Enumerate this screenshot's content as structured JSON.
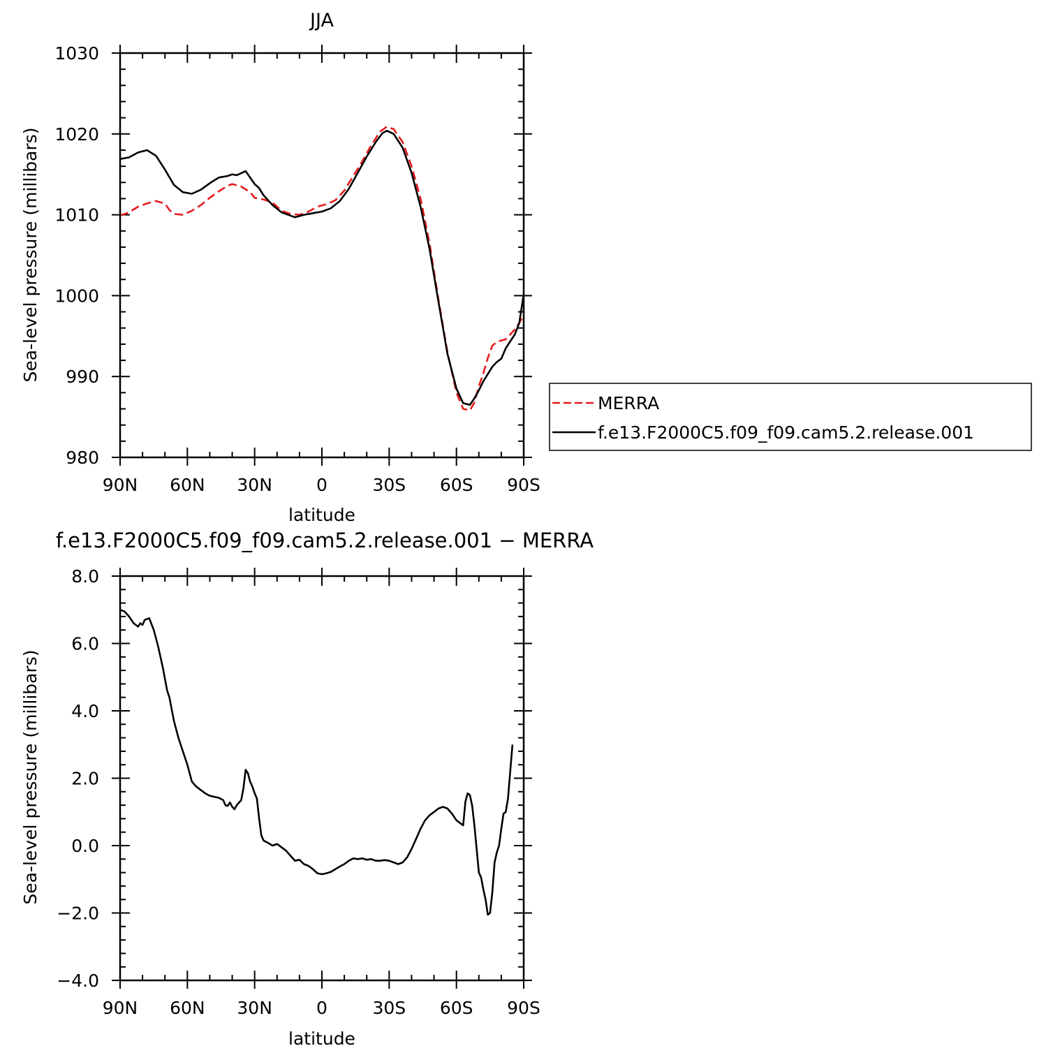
{
  "colors": {
    "merra": "#e41a1c",
    "model": "#000000",
    "axis": "#000000",
    "background": "#ffffff"
  },
  "chart_data": [
    {
      "type": "line",
      "title": "JJA",
      "xlabel": "latitude",
      "ylabel": "Sea-level pressure (millibars)",
      "xlim": [
        90,
        -90
      ],
      "ylim": [
        980,
        1030
      ],
      "x_tick_values": [
        90,
        60,
        30,
        0,
        -30,
        -60,
        -90
      ],
      "x_tick_labels": [
        "90N",
        "60N",
        "30N",
        "0",
        "30S",
        "60S",
        "90S"
      ],
      "y_tick_values": [
        980,
        990,
        1000,
        1010,
        1020,
        1030
      ],
      "y_tick_labels": [
        "980",
        "990",
        "1000",
        "1010",
        "1020",
        "1030"
      ],
      "legend": {
        "placement": "right-outside"
      },
      "series": [
        {
          "name": "MERRA",
          "style": "dashed",
          "color": "#e41a1c",
          "points": [
            [
              90,
              1009.9
            ],
            [
              86,
              1010.3
            ],
            [
              82,
              1011.0
            ],
            [
              78,
              1011.4
            ],
            [
              74,
              1011.7
            ],
            [
              70,
              1011.4
            ],
            [
              68,
              1010.6
            ],
            [
              66,
              1010.1
            ],
            [
              62,
              1010.0
            ],
            [
              58,
              1010.5
            ],
            [
              54,
              1011.2
            ],
            [
              50,
              1012.1
            ],
            [
              46,
              1012.9
            ],
            [
              42,
              1013.6
            ],
            [
              40,
              1013.8
            ],
            [
              36,
              1013.5
            ],
            [
              32,
              1012.8
            ],
            [
              30,
              1012.1
            ],
            [
              26,
              1011.9
            ],
            [
              22,
              1011.5
            ],
            [
              18,
              1010.5
            ],
            [
              14,
              1010.1
            ],
            [
              10,
              1010.0
            ],
            [
              6,
              1010.4
            ],
            [
              2,
              1011.0
            ],
            [
              -2,
              1011.3
            ],
            [
              -6,
              1011.8
            ],
            [
              -10,
              1013.0
            ],
            [
              -14,
              1014.8
            ],
            [
              -18,
              1016.6
            ],
            [
              -22,
              1018.6
            ],
            [
              -26,
              1020.3
            ],
            [
              -29,
              1020.9
            ],
            [
              -32,
              1020.6
            ],
            [
              -36,
              1019.0
            ],
            [
              -40,
              1016.0
            ],
            [
              -44,
              1012.0
            ],
            [
              -48,
              1006.5
            ],
            [
              -52,
              999.5
            ],
            [
              -56,
              993.0
            ],
            [
              -60,
              988.0
            ],
            [
              -63,
              986.0
            ],
            [
              -66,
              985.8
            ],
            [
              -68,
              986.8
            ],
            [
              -70,
              988.8
            ],
            [
              -72,
              990.4
            ],
            [
              -74,
              992.3
            ],
            [
              -76,
              993.8
            ],
            [
              -78,
              994.3
            ],
            [
              -82,
              994.6
            ],
            [
              -86,
              995.8
            ],
            [
              -90,
              997.5
            ]
          ]
        },
        {
          "name": "f.e13.F2000C5.f09_f09.cam5.2.release.001",
          "style": "solid",
          "color": "#000000",
          "points": [
            [
              90,
              1016.9
            ],
            [
              86,
              1017.1
            ],
            [
              82,
              1017.7
            ],
            [
              78,
              1018.0
            ],
            [
              74,
              1017.3
            ],
            [
              70,
              1015.6
            ],
            [
              66,
              1013.7
            ],
            [
              62,
              1012.8
            ],
            [
              58,
              1012.6
            ],
            [
              54,
              1013.1
            ],
            [
              50,
              1013.9
            ],
            [
              46,
              1014.6
            ],
            [
              42,
              1014.8
            ],
            [
              40,
              1015.0
            ],
            [
              38,
              1014.9
            ],
            [
              34,
              1015.4
            ],
            [
              32,
              1014.6
            ],
            [
              30,
              1013.8
            ],
            [
              28,
              1013.3
            ],
            [
              26,
              1012.4
            ],
            [
              22,
              1011.2
            ],
            [
              18,
              1010.3
            ],
            [
              14,
              1009.9
            ],
            [
              12,
              1009.7
            ],
            [
              8,
              1010.0
            ],
            [
              4,
              1010.2
            ],
            [
              0,
              1010.4
            ],
            [
              -4,
              1010.8
            ],
            [
              -8,
              1011.7
            ],
            [
              -12,
              1013.2
            ],
            [
              -16,
              1015.2
            ],
            [
              -20,
              1017.2
            ],
            [
              -24,
              1019.0
            ],
            [
              -27,
              1020.1
            ],
            [
              -29,
              1020.4
            ],
            [
              -32,
              1020.0
            ],
            [
              -36,
              1018.3
            ],
            [
              -40,
              1015.2
            ],
            [
              -44,
              1011.0
            ],
            [
              -48,
              1005.8
            ],
            [
              -52,
              999.2
            ],
            [
              -56,
              992.8
            ],
            [
              -60,
              988.5
            ],
            [
              -63,
              986.7
            ],
            [
              -66,
              986.5
            ],
            [
              -68,
              987.3
            ],
            [
              -70,
              988.3
            ],
            [
              -72,
              989.4
            ],
            [
              -74,
              990.3
            ],
            [
              -76,
              991.2
            ],
            [
              -78,
              991.8
            ],
            [
              -80,
              992.2
            ],
            [
              -82,
              993.5
            ],
            [
              -86,
              995.2
            ],
            [
              -88,
              996.6
            ],
            [
              -90,
              1000.2
            ]
          ]
        }
      ]
    },
    {
      "type": "line",
      "title": "f.e13.F2000C5.f09_f09.cam5.2.release.001 − MERRA",
      "xlabel": "latitude",
      "ylabel": "Sea-level pressure (millibars)",
      "xlim": [
        90,
        -90
      ],
      "ylim": [
        -4.0,
        8.0
      ],
      "x_tick_values": [
        90,
        60,
        30,
        0,
        -30,
        -60,
        -90
      ],
      "x_tick_labels": [
        "90N",
        "60N",
        "30N",
        "0",
        "30S",
        "60S",
        "90S"
      ],
      "y_tick_values": [
        -4,
        -2,
        0,
        2,
        4,
        6,
        8
      ],
      "y_tick_labels": [
        "−4.0",
        "−2.0",
        "0.0",
        "2.0",
        "4.0",
        "6.0",
        "8.0"
      ],
      "series": [
        {
          "style": "solid",
          "color": "#000000",
          "points": [
            [
              90,
              7.0
            ],
            [
              88,
              6.95
            ],
            [
              86,
              6.8
            ],
            [
              84,
              6.6
            ],
            [
              82,
              6.5
            ],
            [
              81,
              6.6
            ],
            [
              80,
              6.55
            ],
            [
              79,
              6.7
            ],
            [
              77,
              6.75
            ],
            [
              75,
              6.4
            ],
            [
              73,
              5.9
            ],
            [
              71,
              5.3
            ],
            [
              69,
              4.6
            ],
            [
              68,
              4.4
            ],
            [
              66,
              3.7
            ],
            [
              64,
              3.2
            ],
            [
              62,
              2.8
            ],
            [
              60,
              2.4
            ],
            [
              58,
              1.9
            ],
            [
              56,
              1.75
            ],
            [
              54,
              1.65
            ],
            [
              52,
              1.55
            ],
            [
              50,
              1.48
            ],
            [
              46,
              1.42
            ],
            [
              44,
              1.35
            ],
            [
              43,
              1.2
            ],
            [
              42,
              1.18
            ],
            [
              41,
              1.28
            ],
            [
              40,
              1.15
            ],
            [
              39,
              1.08
            ],
            [
              38,
              1.2
            ],
            [
              36,
              1.35
            ],
            [
              35,
              1.7
            ],
            [
              34,
              2.25
            ],
            [
              33,
              2.15
            ],
            [
              32,
              1.9
            ],
            [
              31,
              1.75
            ],
            [
              30,
              1.55
            ],
            [
              29,
              1.4
            ],
            [
              28,
              0.8
            ],
            [
              27,
              0.3
            ],
            [
              26,
              0.15
            ],
            [
              24,
              0.08
            ],
            [
              22,
              0.0
            ],
            [
              20,
              0.05
            ],
            [
              18,
              -0.05
            ],
            [
              16,
              -0.15
            ],
            [
              14,
              -0.3
            ],
            [
              12,
              -0.45
            ],
            [
              10,
              -0.42
            ],
            [
              8,
              -0.55
            ],
            [
              6,
              -0.6
            ],
            [
              4,
              -0.7
            ],
            [
              2,
              -0.82
            ],
            [
              0,
              -0.85
            ],
            [
              -2,
              -0.82
            ],
            [
              -4,
              -0.78
            ],
            [
              -6,
              -0.7
            ],
            [
              -8,
              -0.62
            ],
            [
              -10,
              -0.55
            ],
            [
              -12,
              -0.45
            ],
            [
              -14,
              -0.38
            ],
            [
              -16,
              -0.4
            ],
            [
              -18,
              -0.38
            ],
            [
              -20,
              -0.42
            ],
            [
              -22,
              -0.4
            ],
            [
              -24,
              -0.45
            ],
            [
              -26,
              -0.45
            ],
            [
              -28,
              -0.43
            ],
            [
              -30,
              -0.45
            ],
            [
              -32,
              -0.5
            ],
            [
              -34,
              -0.55
            ],
            [
              -36,
              -0.5
            ],
            [
              -38,
              -0.35
            ],
            [
              -40,
              -0.1
            ],
            [
              -42,
              0.2
            ],
            [
              -44,
              0.5
            ],
            [
              -46,
              0.75
            ],
            [
              -48,
              0.9
            ],
            [
              -50,
              1.0
            ],
            [
              -52,
              1.1
            ],
            [
              -54,
              1.15
            ],
            [
              -56,
              1.1
            ],
            [
              -58,
              0.95
            ],
            [
              -60,
              0.75
            ],
            [
              -62,
              0.65
            ],
            [
              -63,
              0.6
            ],
            [
              -64,
              1.3
            ],
            [
              -65,
              1.55
            ],
            [
              -66,
              1.5
            ],
            [
              -67,
              1.2
            ],
            [
              -68,
              0.6
            ],
            [
              -70,
              -0.8
            ],
            [
              -71,
              -0.95
            ],
            [
              -72,
              -1.3
            ],
            [
              -73,
              -1.6
            ],
            [
              -74,
              -2.05
            ],
            [
              -75,
              -2.0
            ],
            [
              -76,
              -1.4
            ],
            [
              -77,
              -0.5
            ],
            [
              -78,
              -0.2
            ],
            [
              -79,
              0.0
            ],
            [
              -80,
              0.5
            ],
            [
              -81,
              0.95
            ],
            [
              -82,
              1.0
            ],
            [
              -83,
              1.4
            ],
            [
              -84,
              2.2
            ],
            [
              -85,
              3.0
            ]
          ]
        }
      ]
    }
  ]
}
